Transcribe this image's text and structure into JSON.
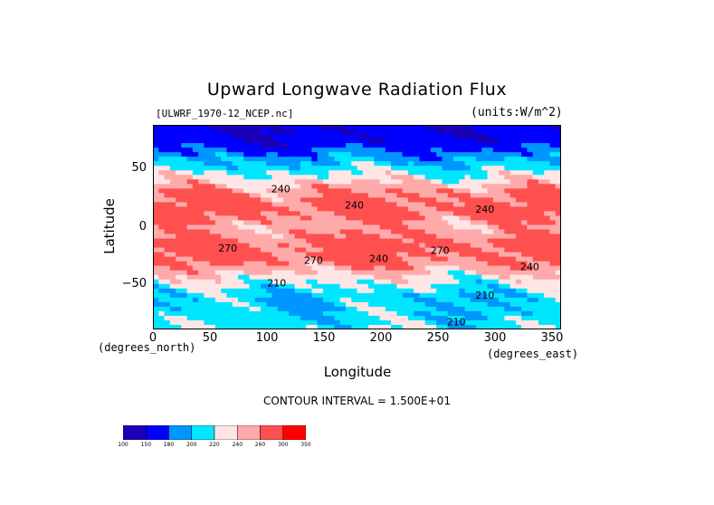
{
  "chart_data": {
    "type": "heatmap",
    "title": "Upward Longwave Radiation Flux",
    "source_label": "[ULWRF_1970-12_NCEP.nc]",
    "units_label": "(units:W/m^2)",
    "xlabel": "Longitude",
    "ylabel": "Latitude",
    "x_units_label": "(degrees_east)",
    "y_units_label": "(degrees_north)",
    "xlim": [
      0,
      357.5
    ],
    "ylim": [
      -90,
      90
    ],
    "x_ticks": [
      "0",
      "50",
      "100",
      "150",
      "200",
      "250",
      "300",
      "350"
    ],
    "y_ticks": [
      "50",
      "0",
      "−50"
    ],
    "contour_interval_text": "CONTOUR INTERVAL = 1.500E+01",
    "contour_labels": [
      "240",
      "240",
      "240",
      "240",
      "210",
      "210",
      "210",
      "270",
      "270",
      "270",
      "240"
    ],
    "colorbar": {
      "ticks": [
        "100",
        "150",
        "180",
        "200",
        "220",
        "240",
        "260",
        "300",
        "350"
      ],
      "colors": [
        "#1a00b8",
        "#0000ff",
        "#0096ff",
        "#00e6ff",
        "#ffe6e6",
        "#ffaaaa",
        "#ff5050",
        "#ff0000"
      ]
    },
    "latitude_bands": [
      {
        "lat": 90,
        "value": 150
      },
      {
        "lat": 75,
        "value": 160
      },
      {
        "lat": 60,
        "value": 195
      },
      {
        "lat": 45,
        "value": 225
      },
      {
        "lat": 30,
        "value": 260
      },
      {
        "lat": 15,
        "value": 270
      },
      {
        "lat": 0,
        "value": 250
      },
      {
        "lat": -15,
        "value": 270
      },
      {
        "lat": -30,
        "value": 265
      },
      {
        "lat": -45,
        "value": 230
      },
      {
        "lat": -60,
        "value": 205
      },
      {
        "lat": -75,
        "value": 205
      },
      {
        "lat": -90,
        "value": 215
      }
    ]
  }
}
